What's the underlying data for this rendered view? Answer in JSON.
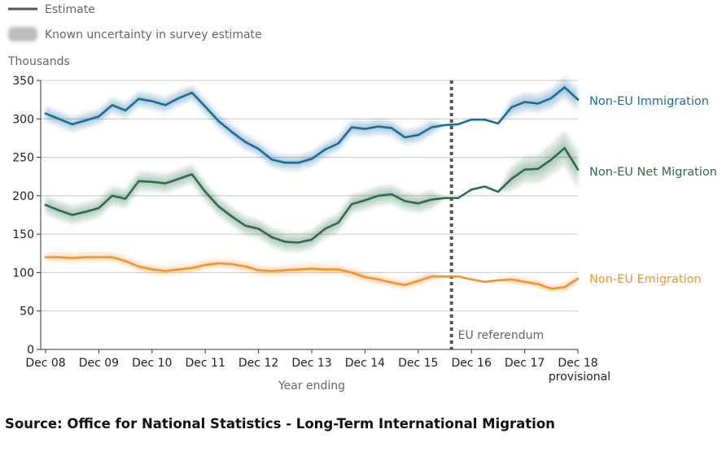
{
  "legend": {
    "estimate_label": "Estimate",
    "uncertainty_label": "Known uncertainty in survey estimate"
  },
  "source": "Source: Office for National Statistics - Long-Term International Migration",
  "colors": {
    "immigration": "#1a6e9c",
    "net": "#2f6d4a",
    "emigration": "#f7922b",
    "grid": "#c8c8c8",
    "marker": "#555555"
  },
  "chart_data": {
    "type": "line",
    "title": "",
    "ylabel": "Thousands",
    "xlabel": "Year ending",
    "ylim": [
      0,
      350
    ],
    "yticks": [
      0,
      50,
      100,
      150,
      200,
      250,
      300,
      350
    ],
    "grid": true,
    "x_tick_labels": [
      "Dec 08",
      "Dec 09",
      "Dec 10",
      "Dec 11",
      "Dec 12",
      "Dec 13",
      "Dec 14",
      "Dec 15",
      "Dec 16",
      "Dec 17",
      "Dec 18"
    ],
    "x_tick_sublabel": "provisional",
    "x_index_range": [
      0,
      40
    ],
    "annotation": {
      "label": "EU referendum",
      "x_index": 30.5
    },
    "series": [
      {
        "name": "Non-EU Immigration",
        "key": "immigration",
        "values": [
          307,
          300,
          293,
          298,
          303,
          318,
          311,
          326,
          323,
          318,
          327,
          334,
          316,
          297,
          283,
          270,
          261,
          247,
          243,
          243,
          248,
          260,
          268,
          289,
          287,
          290,
          288,
          276,
          279,
          289,
          292,
          293,
          299,
          299,
          294,
          315,
          322,
          320,
          327,
          341,
          325
        ],
        "uncertainty": [
          10,
          10,
          10,
          10,
          10,
          10,
          10,
          10,
          10,
          10,
          10,
          10,
          10,
          10,
          10,
          10,
          10,
          10,
          10,
          10,
          10,
          10,
          10,
          10,
          10,
          10,
          10,
          10,
          10,
          10,
          0,
          0,
          0,
          0,
          0,
          12,
          12,
          12,
          13,
          14,
          15
        ]
      },
      {
        "name": "Non-EU Net Migration",
        "key": "net",
        "values": [
          188,
          181,
          175,
          179,
          184,
          200,
          196,
          219,
          218,
          216,
          222,
          228,
          205,
          186,
          173,
          161,
          157,
          146,
          140,
          139,
          143,
          157,
          165,
          189,
          194,
          200,
          202,
          193,
          190,
          195,
          197,
          197,
          208,
          212,
          205,
          222,
          234,
          235,
          247,
          262,
          234
        ],
        "uncertainty": [
          12,
          12,
          12,
          12,
          12,
          12,
          12,
          12,
          12,
          12,
          12,
          12,
          12,
          12,
          12,
          12,
          12,
          12,
          12,
          12,
          12,
          12,
          12,
          12,
          12,
          12,
          12,
          12,
          12,
          12,
          0,
          0,
          0,
          0,
          0,
          16,
          17,
          18,
          20,
          22,
          25
        ]
      },
      {
        "name": "Non-EU Emigration",
        "key": "emigration",
        "values": [
          120,
          120,
          119,
          120,
          120,
          120,
          115,
          108,
          104,
          102,
          104,
          106,
          110,
          112,
          111,
          108,
          103,
          102,
          103,
          104,
          105,
          104,
          104,
          100,
          94,
          91,
          87,
          84,
          89,
          95,
          95,
          95,
          91,
          88,
          90,
          91,
          88,
          85,
          79,
          81,
          92
        ],
        "uncertainty": [
          6,
          6,
          6,
          6,
          6,
          6,
          6,
          6,
          6,
          6,
          6,
          6,
          6,
          6,
          6,
          6,
          6,
          6,
          6,
          6,
          6,
          6,
          6,
          6,
          6,
          6,
          6,
          6,
          6,
          6,
          0,
          0,
          0,
          0,
          0,
          5,
          5,
          5,
          5,
          5,
          5
        ]
      }
    ]
  }
}
